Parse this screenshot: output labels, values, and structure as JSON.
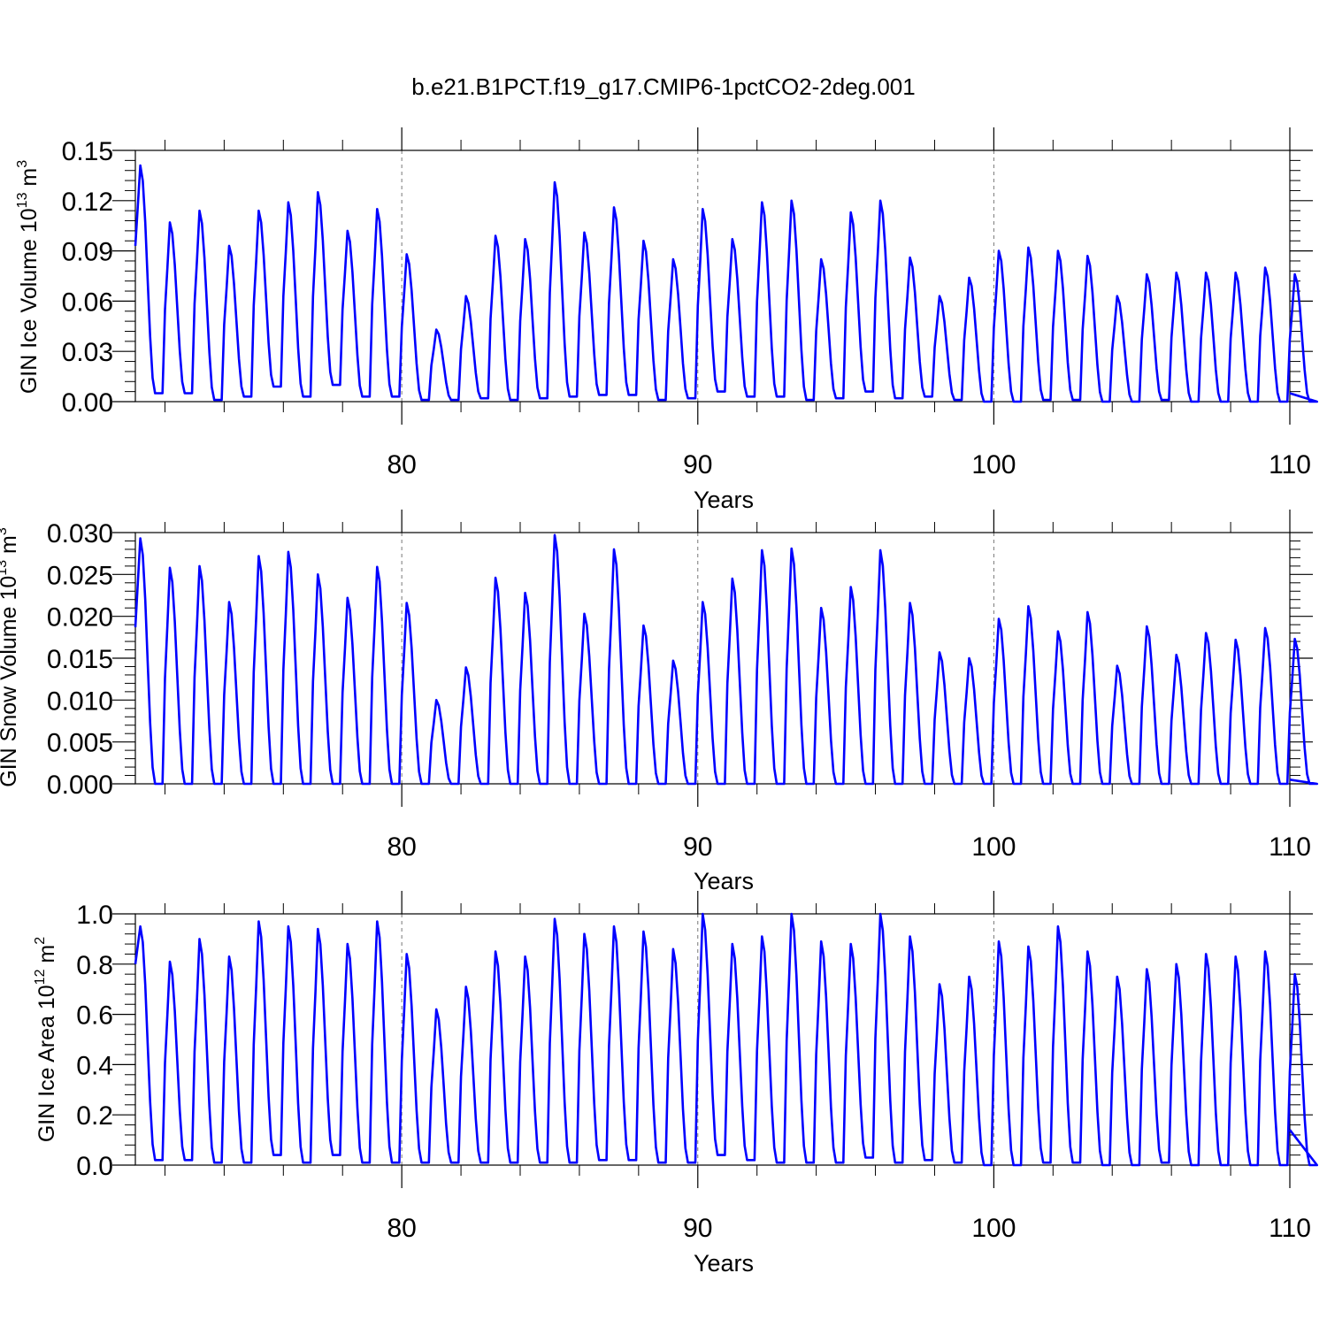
{
  "title": "b.e21.B1PCT.f19_g17.CMIP6-1pctCO2-2deg.001",
  "colors": {
    "line": "#0000ff",
    "axis": "#000000",
    "grid": "#777777"
  },
  "chart_data": [
    {
      "type": "line",
      "name": "ice-volume",
      "ylabel_main": "GIN Ice Volume 10",
      "ylabel_exp": "13",
      "ylabel_unit": " m",
      "ylabel_unit_exp": "3",
      "xlabel": "Years",
      "xlim": [
        71,
        110
      ],
      "ylim": [
        0,
        0.15
      ],
      "xticks": [
        80,
        90,
        100,
        110
      ],
      "xtick_labels": [
        "80",
        "90",
        "100",
        "110"
      ],
      "yticks": [
        0,
        0.03,
        0.06,
        0.09,
        0.12,
        0.15
      ],
      "ytick_labels": [
        "0.00",
        "0.03",
        "0.06",
        "0.09",
        "0.12",
        "0.15"
      ],
      "grid_x": [
        80,
        90,
        100
      ],
      "annual_peaks": [
        0.141,
        0.107,
        0.114,
        0.093,
        0.114,
        0.119,
        0.125,
        0.102,
        0.115,
        0.088,
        0.043,
        0.063,
        0.099,
        0.097,
        0.131,
        0.101,
        0.116,
        0.096,
        0.085,
        0.115,
        0.097,
        0.119,
        0.12,
        0.085,
        0.113,
        0.12,
        0.086,
        0.063,
        0.074,
        0.09,
        0.092,
        0.09,
        0.087,
        0.063,
        0.076,
        0.077,
        0.077,
        0.077,
        0.08,
        0.076
      ],
      "annual_minima": [
        0.005,
        0.005,
        0.001,
        0.003,
        0.009,
        0.003,
        0.01,
        0.003,
        0.003,
        0.001,
        0.001,
        0.002,
        0.001,
        0.002,
        0.003,
        0.004,
        0.004,
        0.001,
        0.002,
        0.006,
        0.003,
        0.003,
        0.001,
        0.002,
        0.006,
        0.002,
        0.003,
        0.001,
        0.0,
        0.0,
        0.001,
        0.001,
        0.0,
        0.0,
        0.001,
        0.0,
        0.0,
        0.0,
        0.0,
        0.0
      ],
      "start_value": 0.093,
      "end_value": 0.005
    },
    {
      "type": "line",
      "name": "snow-volume",
      "ylabel_main": "GIN Snow Volume 10",
      "ylabel_exp": "13",
      "ylabel_unit": " m",
      "ylabel_unit_exp": "3",
      "xlabel": "Years",
      "xlim": [
        71,
        110
      ],
      "ylim": [
        0,
        0.03
      ],
      "xticks": [
        80,
        90,
        100,
        110
      ],
      "xtick_labels": [
        "80",
        "90",
        "100",
        "110"
      ],
      "yticks": [
        0,
        0.005,
        0.01,
        0.015,
        0.02,
        0.025,
        0.03
      ],
      "ytick_labels": [
        "0.000",
        "0.005",
        "0.010",
        "0.015",
        "0.020",
        "0.025",
        "0.030"
      ],
      "grid_x": [
        80,
        90,
        100
      ],
      "annual_peaks": [
        0.0293,
        0.0258,
        0.026,
        0.0217,
        0.0272,
        0.0277,
        0.025,
        0.0222,
        0.0259,
        0.0216,
        0.01,
        0.0139,
        0.0246,
        0.0228,
        0.0297,
        0.0203,
        0.028,
        0.0189,
        0.0147,
        0.0217,
        0.0245,
        0.0279,
        0.0281,
        0.021,
        0.0235,
        0.0279,
        0.0216,
        0.0157,
        0.015,
        0.0197,
        0.0212,
        0.0182,
        0.0205,
        0.0141,
        0.0188,
        0.0154,
        0.018,
        0.0172,
        0.0186,
        0.0173
      ],
      "annual_minima": [
        0.0,
        0.0,
        0.0,
        0.0,
        0.0,
        0.0,
        0.0,
        0.0,
        0.0,
        0.0,
        0.0,
        0.0,
        0.0,
        0.0,
        0.0,
        0.0,
        0.0,
        0.0,
        0.0,
        0.0,
        0.0,
        0.0,
        0.0,
        0.0,
        0.0,
        0.0,
        0.0,
        0.0,
        0.0,
        0.0,
        0.0,
        0.0,
        0.0,
        0.0,
        0.0,
        0.0,
        0.0,
        0.0,
        0.0,
        0.0
      ],
      "start_value": 0.0187,
      "end_value": 0.0005
    },
    {
      "type": "line",
      "name": "ice-area",
      "ylabel_main": "GIN Ice Area 10",
      "ylabel_exp": "12",
      "ylabel_unit": " m",
      "ylabel_unit_exp": "2",
      "xlabel": "Years",
      "xlim": [
        71,
        110
      ],
      "ylim": [
        0,
        1.0
      ],
      "xticks": [
        80,
        90,
        100,
        110
      ],
      "xtick_labels": [
        "80",
        "90",
        "100",
        "110"
      ],
      "yticks": [
        0,
        0.2,
        0.4,
        0.6,
        0.8,
        1.0
      ],
      "ytick_labels": [
        "0.0",
        "0.2",
        "0.4",
        "0.6",
        "0.8",
        "1.0"
      ],
      "grid_x": [
        80,
        90,
        100
      ],
      "annual_peaks": [
        0.95,
        0.81,
        0.9,
        0.83,
        0.97,
        0.95,
        0.94,
        0.88,
        0.97,
        0.84,
        0.62,
        0.71,
        0.85,
        0.83,
        0.98,
        0.92,
        0.95,
        0.93,
        0.86,
        1.0,
        0.88,
        0.91,
        1.0,
        0.89,
        0.88,
        1.0,
        0.91,
        0.72,
        0.75,
        0.89,
        0.87,
        0.95,
        0.85,
        0.75,
        0.78,
        0.8,
        0.84,
        0.83,
        0.85,
        0.76
      ],
      "annual_minima": [
        0.02,
        0.02,
        0.01,
        0.01,
        0.04,
        0.01,
        0.04,
        0.01,
        0.01,
        0.01,
        0.01,
        0.01,
        0.01,
        0.01,
        0.01,
        0.02,
        0.02,
        0.01,
        0.01,
        0.04,
        0.02,
        0.01,
        0.01,
        0.01,
        0.03,
        0.01,
        0.02,
        0.01,
        0.0,
        0.0,
        0.01,
        0.01,
        0.0,
        0.0,
        0.01,
        0.0,
        0.0,
        0.0,
        0.0,
        0.0
      ],
      "start_value": 0.8,
      "end_value": 0.14
    }
  ]
}
